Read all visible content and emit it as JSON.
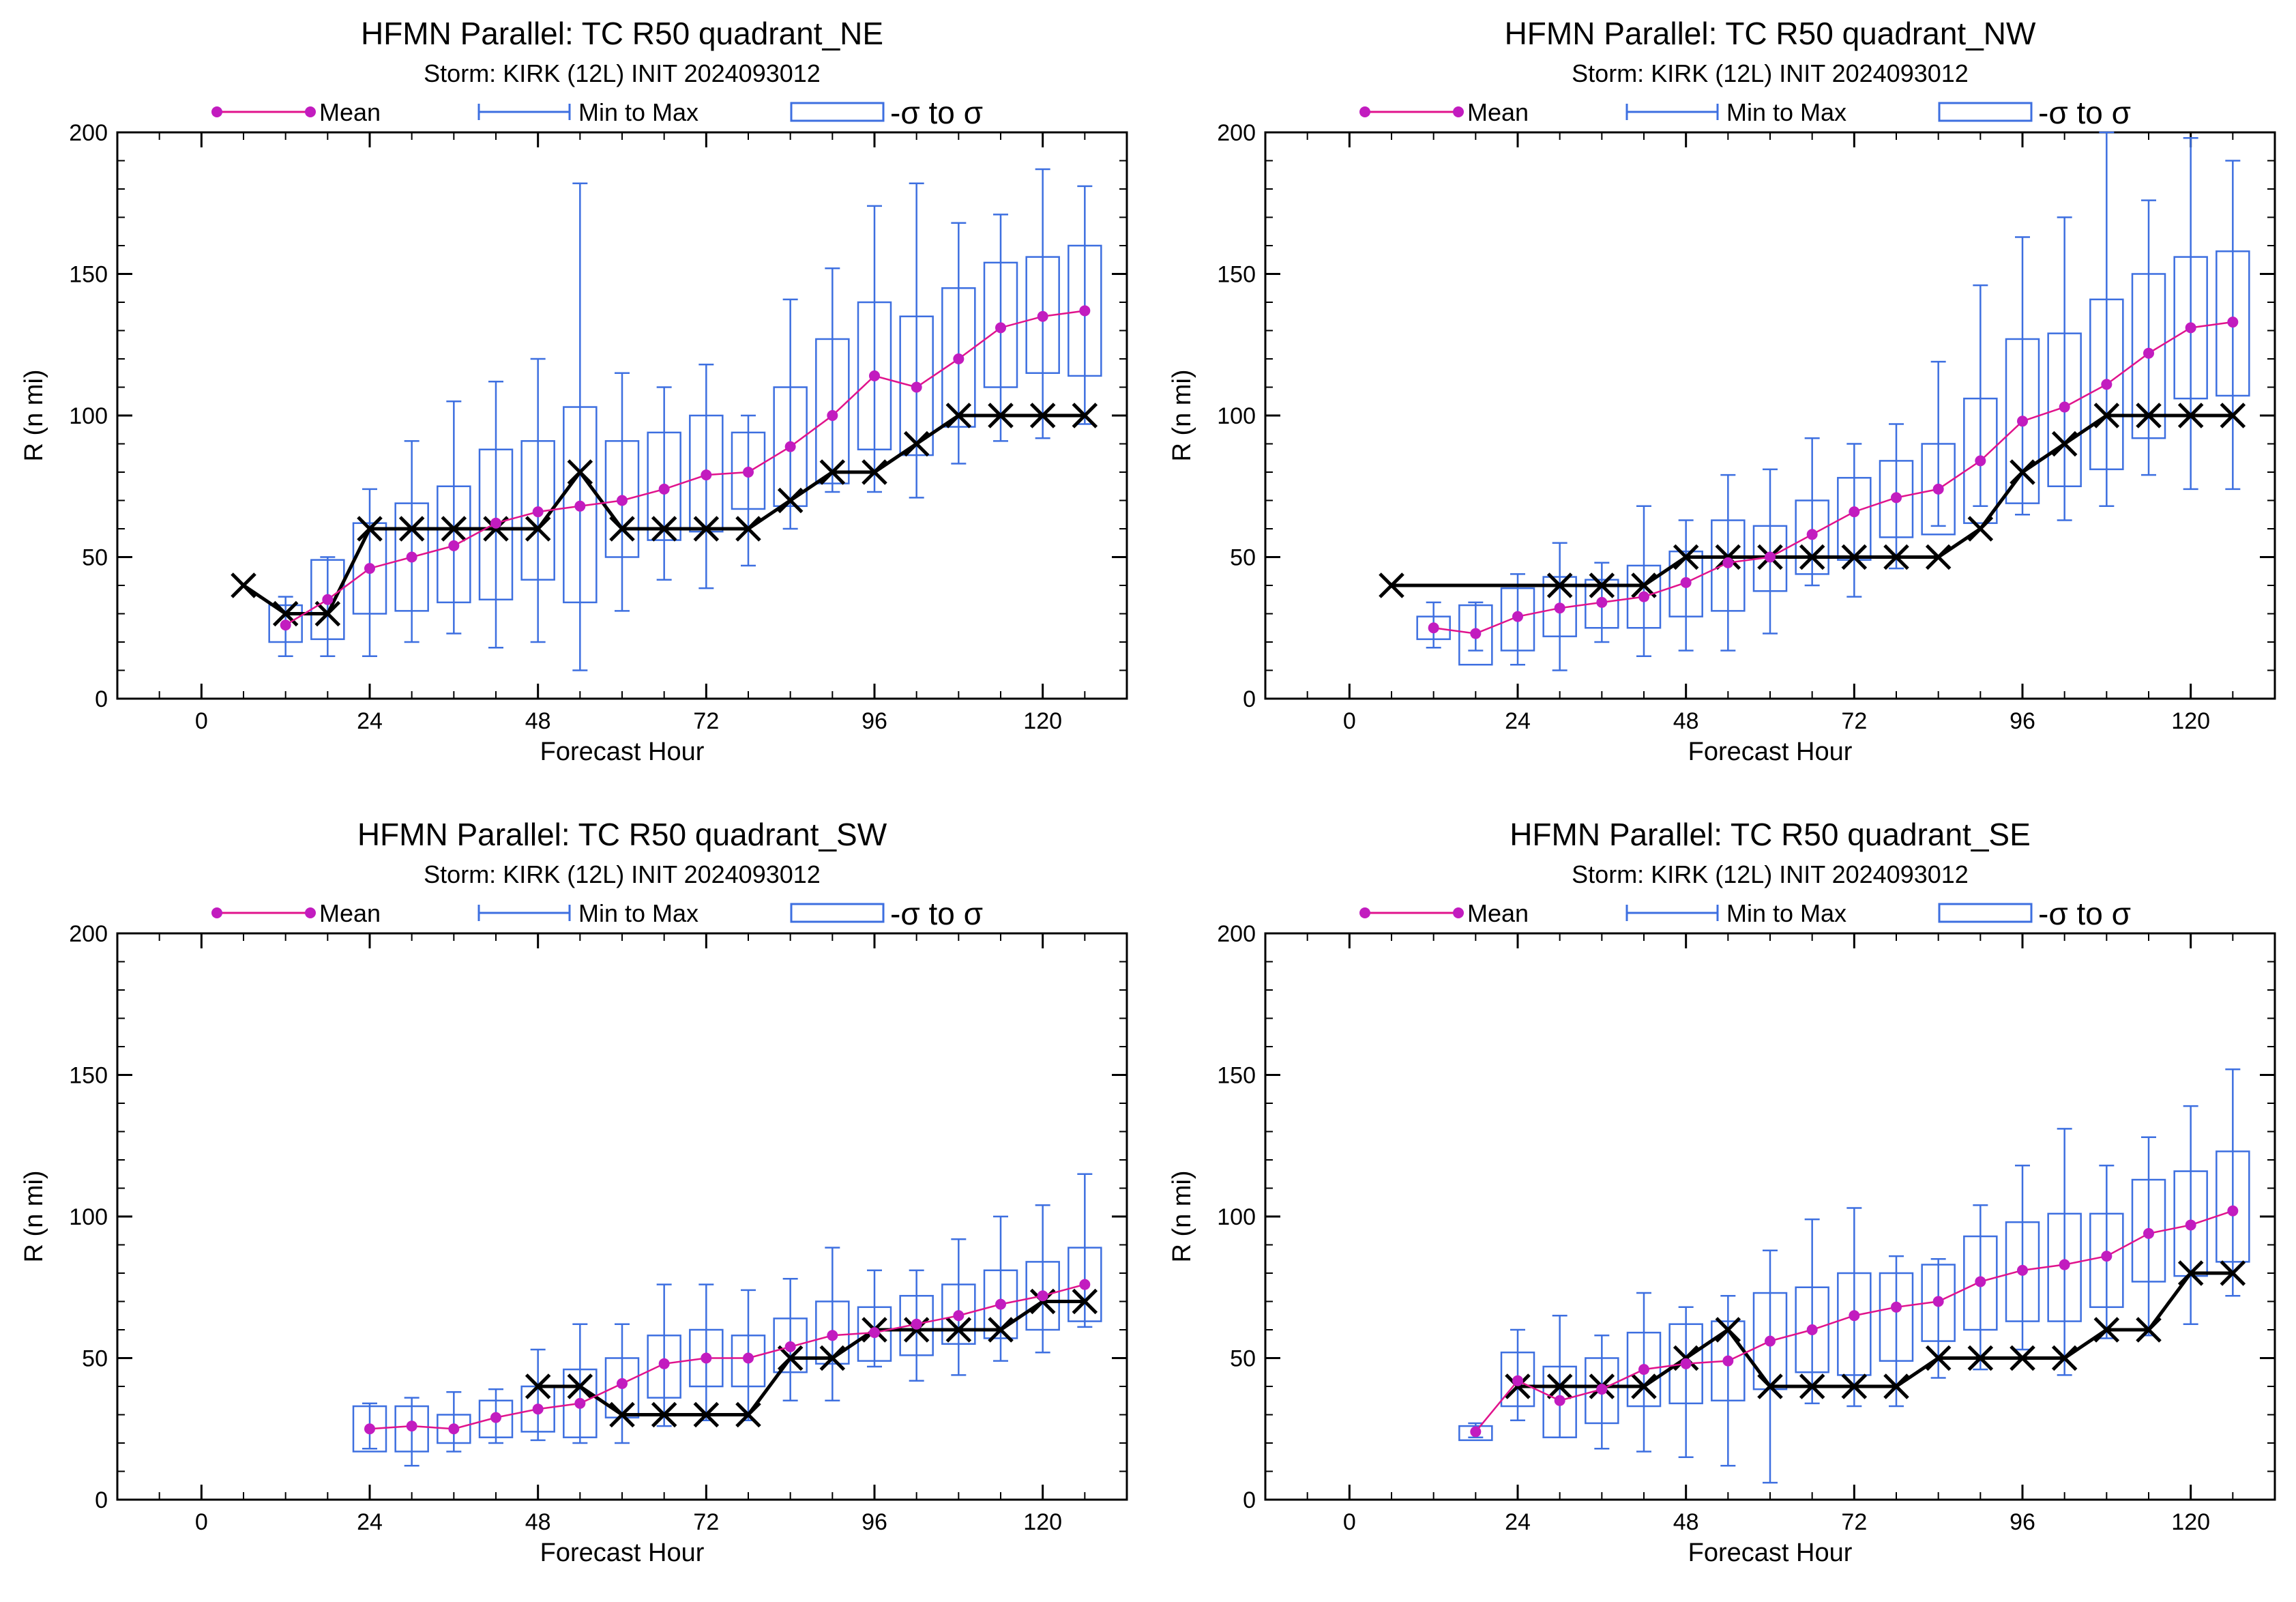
{
  "common": {
    "subtitle": "Storm: KIRK (12L) INIT 2024093012",
    "legend": {
      "mean": "Mean",
      "minmax": "Min to Max",
      "sigma": "-σ to σ"
    },
    "xlabel": "Forecast Hour",
    "ylabel": "R (n mi)",
    "colors": {
      "mean": "#e0138c",
      "mean_marker": "#c21cbf",
      "box": "#3d6fe0",
      "best_track": "#000000",
      "axis": "#000000"
    }
  },
  "chart_data": [
    {
      "type": "box",
      "title": "HFMN Parallel: TC  R50 quadrant_NE",
      "subtitle": "Storm: KIRK (12L) INIT 2024093012",
      "xlabel": "Forecast Hour",
      "ylabel": "R (n mi)",
      "xlim": [
        -12,
        132
      ],
      "ylim": [
        0,
        200
      ],
      "xticks": [
        0,
        24,
        48,
        72,
        96,
        120
      ],
      "yticks": [
        0,
        50,
        100,
        150,
        200
      ],
      "legend": [
        "Mean",
        "Min to Max",
        "-σ to σ"
      ],
      "series": [
        {
          "name": "Mean",
          "x": [
            12,
            18,
            24,
            30,
            36,
            42,
            48,
            54,
            60,
            66,
            72,
            78,
            84,
            90,
            96,
            102,
            108,
            114,
            120,
            126
          ],
          "values": [
            26,
            35,
            46,
            50,
            54,
            62,
            66,
            68,
            70,
            74,
            79,
            80,
            89,
            100,
            114,
            110,
            120,
            131,
            135,
            137
          ]
        },
        {
          "name": "Min to Max",
          "x": [
            12,
            18,
            24,
            30,
            36,
            42,
            48,
            54,
            60,
            66,
            72,
            78,
            84,
            90,
            96,
            102,
            108,
            114,
            120,
            126
          ],
          "min": [
            15,
            15,
            15,
            20,
            23,
            18,
            20,
            10,
            31,
            42,
            39,
            47,
            60,
            73,
            73,
            71,
            83,
            91,
            92,
            97
          ],
          "max": [
            36,
            50,
            74,
            91,
            105,
            112,
            120,
            182,
            115,
            110,
            118,
            100,
            141,
            152,
            174,
            182,
            168,
            171,
            187,
            181
          ]
        },
        {
          "name": "-σ to σ",
          "x": [
            12,
            18,
            24,
            30,
            36,
            42,
            48,
            54,
            60,
            66,
            72,
            78,
            84,
            90,
            96,
            102,
            108,
            114,
            120,
            126
          ],
          "low": [
            20,
            21,
            30,
            31,
            34,
            35,
            42,
            34,
            50,
            56,
            59,
            67,
            68,
            76,
            88,
            86,
            96,
            110,
            115,
            114
          ],
          "high": [
            33,
            49,
            62,
            69,
            75,
            88,
            91,
            103,
            91,
            94,
            100,
            94,
            110,
            127,
            140,
            135,
            145,
            154,
            156,
            160
          ]
        },
        {
          "name": "",
          "x": [
            6,
            12,
            18,
            24,
            30,
            36,
            42,
            48,
            54,
            60,
            66,
            72,
            78,
            84,
            90,
            96,
            102,
            108,
            114,
            120,
            126
          ],
          "values": [
            40,
            30,
            30,
            60,
            60,
            60,
            60,
            60,
            80,
            60,
            60,
            60,
            60,
            70,
            80,
            80,
            90,
            100,
            100,
            100,
            100
          ]
        }
      ]
    },
    {
      "type": "box",
      "title": "HFMN Parallel: TC  R50 quadrant_NW",
      "subtitle": "Storm: KIRK (12L) INIT 2024093012",
      "xlabel": "Forecast Hour",
      "ylabel": "R (n mi)",
      "xlim": [
        -12,
        132
      ],
      "ylim": [
        0,
        200
      ],
      "xticks": [
        0,
        24,
        48,
        72,
        96,
        120
      ],
      "yticks": [
        0,
        50,
        100,
        150,
        200
      ],
      "legend": [
        "Mean",
        "Min to Max",
        "-σ to σ"
      ],
      "series": [
        {
          "name": "Mean",
          "x": [
            12,
            18,
            24,
            30,
            36,
            42,
            48,
            54,
            60,
            66,
            72,
            78,
            84,
            90,
            96,
            102,
            108,
            114,
            120,
            126
          ],
          "values": [
            25,
            23,
            29,
            32,
            34,
            36,
            41,
            48,
            50,
            58,
            66,
            71,
            74,
            84,
            98,
            103,
            111,
            122,
            131,
            133
          ]
        },
        {
          "name": "Min to Max",
          "x": [
            12,
            18,
            24,
            30,
            36,
            42,
            48,
            54,
            60,
            66,
            72,
            78,
            84,
            90,
            96,
            102,
            108,
            114,
            120,
            126
          ],
          "min": [
            18,
            17,
            12,
            10,
            20,
            15,
            17,
            17,
            23,
            40,
            36,
            46,
            61,
            68,
            65,
            63,
            68,
            79,
            74,
            74
          ],
          "max": [
            34,
            34,
            44,
            55,
            48,
            68,
            63,
            79,
            81,
            92,
            90,
            97,
            119,
            146,
            163,
            170,
            200,
            176,
            198,
            190
          ]
        },
        {
          "name": "-σ to σ",
          "x": [
            12,
            18,
            24,
            30,
            36,
            42,
            48,
            54,
            60,
            66,
            72,
            78,
            84,
            90,
            96,
            102,
            108,
            114,
            120,
            126
          ],
          "low": [
            21,
            12,
            17,
            22,
            25,
            25,
            29,
            31,
            38,
            44,
            49,
            57,
            58,
            62,
            69,
            75,
            81,
            92,
            106,
            107
          ],
          "high": [
            29,
            33,
            39,
            43,
            42,
            47,
            52,
            63,
            61,
            70,
            78,
            84,
            90,
            106,
            127,
            129,
            141,
            150,
            156,
            158
          ]
        },
        {
          "name": "",
          "x": [
            6,
            30,
            36,
            42,
            48,
            54,
            60,
            66,
            72,
            78,
            84,
            90,
            96,
            102,
            108,
            114,
            120,
            126
          ],
          "values": [
            40,
            40,
            40,
            40,
            50,
            50,
            50,
            50,
            50,
            50,
            50,
            60,
            80,
            90,
            100,
            100,
            100,
            100
          ]
        }
      ]
    },
    {
      "type": "box",
      "title": "HFMN Parallel: TC  R50 quadrant_SW",
      "subtitle": "Storm: KIRK (12L) INIT 2024093012",
      "xlabel": "Forecast Hour",
      "ylabel": "R (n mi)",
      "xlim": [
        -12,
        132
      ],
      "ylim": [
        0,
        200
      ],
      "xticks": [
        0,
        24,
        48,
        72,
        96,
        120
      ],
      "yticks": [
        0,
        50,
        100,
        150,
        200
      ],
      "legend": [
        "Mean",
        "Min to Max",
        "-σ to σ"
      ],
      "series": [
        {
          "name": "Mean",
          "x": [
            24,
            30,
            36,
            42,
            48,
            54,
            60,
            66,
            72,
            78,
            84,
            90,
            96,
            102,
            108,
            114,
            120,
            126
          ],
          "values": [
            25,
            26,
            25,
            29,
            32,
            34,
            41,
            48,
            50,
            50,
            54,
            58,
            59,
            62,
            65,
            69,
            72,
            76
          ]
        },
        {
          "name": "Min to Max",
          "x": [
            24,
            30,
            36,
            42,
            48,
            54,
            60,
            66,
            72,
            78,
            84,
            90,
            96,
            102,
            108,
            114,
            120,
            126
          ],
          "min": [
            18,
            12,
            17,
            20,
            21,
            20,
            20,
            26,
            28,
            28,
            35,
            35,
            47,
            42,
            44,
            49,
            52,
            61
          ],
          "max": [
            34,
            36,
            38,
            39,
            53,
            62,
            62,
            76,
            76,
            74,
            78,
            89,
            81,
            81,
            92,
            100,
            104,
            115
          ]
        },
        {
          "name": "-σ to σ",
          "x": [
            24,
            30,
            36,
            42,
            48,
            54,
            60,
            66,
            72,
            78,
            84,
            90,
            96,
            102,
            108,
            114,
            120,
            126
          ],
          "low": [
            17,
            17,
            20,
            22,
            24,
            22,
            29,
            36,
            40,
            40,
            45,
            48,
            49,
            51,
            55,
            57,
            60,
            63
          ],
          "high": [
            33,
            33,
            30,
            35,
            40,
            46,
            50,
            58,
            60,
            58,
            64,
            70,
            68,
            72,
            76,
            81,
            84,
            89
          ]
        },
        {
          "name": "",
          "x": [
            48,
            54,
            60,
            66,
            72,
            78,
            84,
            90,
            96,
            102,
            108,
            114,
            120,
            126
          ],
          "values": [
            40,
            40,
            30,
            30,
            30,
            30,
            50,
            50,
            60,
            60,
            60,
            60,
            70,
            70
          ]
        }
      ]
    },
    {
      "type": "box",
      "title": "HFMN Parallel: TC  R50 quadrant_SE",
      "subtitle": "Storm: KIRK (12L) INIT 2024093012",
      "xlabel": "Forecast Hour",
      "ylabel": "R (n mi)",
      "xlim": [
        -12,
        132
      ],
      "ylim": [
        0,
        200
      ],
      "xticks": [
        0,
        24,
        48,
        72,
        96,
        120
      ],
      "yticks": [
        0,
        50,
        100,
        150,
        200
      ],
      "legend": [
        "Mean",
        "Min to Max",
        "-σ to σ"
      ],
      "series": [
        {
          "name": "Mean",
          "x": [
            18,
            24,
            30,
            36,
            42,
            48,
            54,
            60,
            66,
            72,
            78,
            84,
            90,
            96,
            102,
            108,
            114,
            120,
            126
          ],
          "values": [
            24,
            42,
            35,
            39,
            46,
            48,
            49,
            56,
            60,
            65,
            68,
            70,
            77,
            81,
            83,
            86,
            94,
            97,
            102
          ]
        },
        {
          "name": "Min to Max",
          "x": [
            18,
            24,
            30,
            36,
            42,
            48,
            54,
            60,
            66,
            72,
            78,
            84,
            90,
            96,
            102,
            108,
            114,
            120,
            126
          ],
          "min": [
            22,
            28,
            22,
            18,
            17,
            15,
            12,
            6,
            34,
            33,
            33,
            43,
            46,
            53,
            44,
            57,
            58,
            62,
            72
          ],
          "max": [
            27,
            60,
            65,
            58,
            73,
            68,
            72,
            88,
            99,
            103,
            86,
            85,
            104,
            118,
            131,
            118,
            128,
            139,
            152
          ]
        },
        {
          "name": "-σ to σ",
          "x": [
            18,
            24,
            30,
            36,
            42,
            48,
            54,
            60,
            66,
            72,
            78,
            84,
            90,
            96,
            102,
            108,
            114,
            120,
            126
          ],
          "low": [
            21,
            33,
            22,
            27,
            33,
            34,
            35,
            39,
            45,
            44,
            49,
            56,
            60,
            63,
            63,
            68,
            77,
            79,
            84
          ],
          "high": [
            26,
            52,
            47,
            50,
            59,
            62,
            63,
            73,
            75,
            80,
            80,
            83,
            93,
            98,
            101,
            101,
            113,
            116,
            123
          ]
        },
        {
          "name": "",
          "x": [
            24,
            30,
            36,
            42,
            48,
            54,
            60,
            66,
            72,
            78,
            84,
            90,
            96,
            102,
            108,
            114,
            120,
            126
          ],
          "values": [
            40,
            40,
            40,
            40,
            50,
            60,
            40,
            40,
            40,
            40,
            50,
            50,
            50,
            50,
            60,
            60,
            80,
            80
          ]
        }
      ]
    }
  ]
}
